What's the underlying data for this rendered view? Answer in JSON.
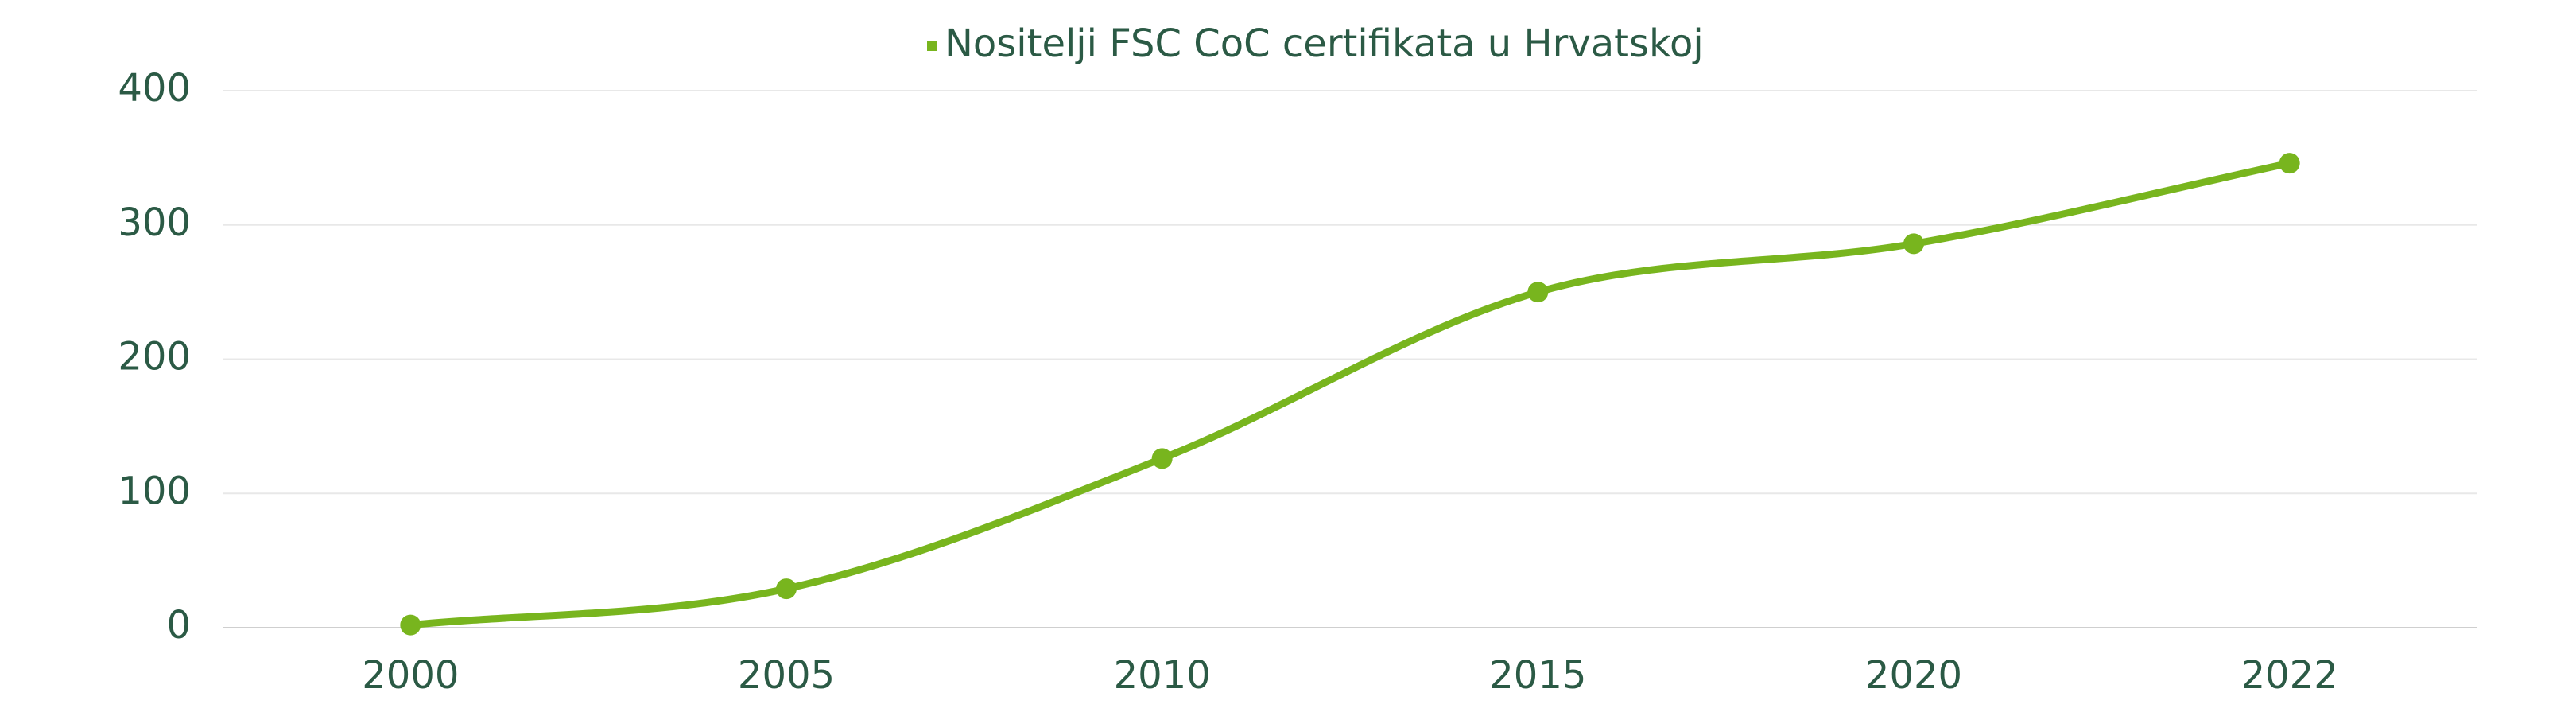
{
  "chart_data": {
    "type": "line",
    "categories": [
      "2000",
      "2005",
      "2010",
      "2015",
      "2020",
      "2022"
    ],
    "series": [
      {
        "name": "Nositelji FSC CoC certifikata u Hrvatskoj",
        "color": "#78b51e",
        "values": [
          2,
          29,
          126,
          250,
          286,
          346
        ]
      }
    ],
    "ylim": [
      0,
      400
    ],
    "yticks": [
      0,
      100,
      200,
      300,
      400
    ],
    "grid": true,
    "legend": "top"
  }
}
